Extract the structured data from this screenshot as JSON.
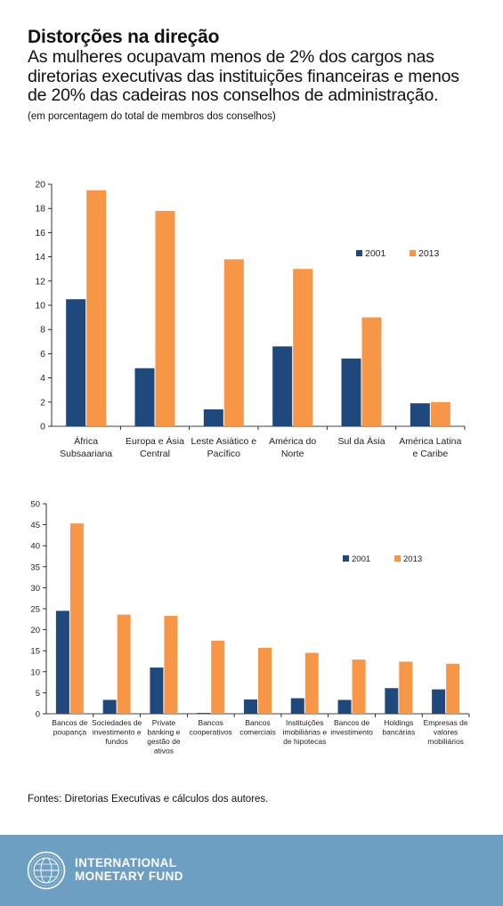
{
  "header": {
    "title": "Distorções na direção",
    "subtitle": "As mulheres ocupavam menos de 2% dos cargos nas diretorias executivas das instituições financeiras e menos de 20% das cadeiras nos conselhos de administração.",
    "note": "(em porcentagem do total de membros dos conselhos)"
  },
  "colors": {
    "s2001": "#1f497d",
    "s2013": "#f79646",
    "axis": "#000000"
  },
  "chart_data": [
    {
      "type": "bar",
      "categories": [
        [
          "África",
          "Subsaariana"
        ],
        [
          "Europa e Ásia",
          "Central"
        ],
        [
          "Leste Asiático e",
          "Pacífico"
        ],
        [
          "América do",
          "Norte"
        ],
        [
          "Sul da Ásia"
        ],
        [
          "América Latina",
          "e Caribe"
        ]
      ],
      "series": [
        {
          "name": "2001",
          "values": [
            10.5,
            4.8,
            1.4,
            6.6,
            5.6,
            1.9
          ]
        },
        {
          "name": "2013",
          "values": [
            19.5,
            17.8,
            13.8,
            13.0,
            9.0,
            2.0
          ]
        }
      ],
      "ylim": [
        0,
        20
      ],
      "yticks": [
        "0",
        "2",
        "4",
        "6",
        "8",
        "10",
        "12",
        "14",
        "16",
        "18",
        "20"
      ],
      "legend": "right"
    },
    {
      "type": "bar",
      "categories": [
        [
          "Bancos de",
          "poupança"
        ],
        [
          "Sociedades de",
          "investimento e",
          "fundos"
        ],
        [
          "Private",
          "banking e",
          "gestão de",
          "ativos"
        ],
        [
          "Bancos",
          "cooperativos"
        ],
        [
          "Bancos",
          "comerciais"
        ],
        [
          "Instituições",
          "imobiliárias e",
          "de hipotecas"
        ],
        [
          "Bancos de",
          "investimento"
        ],
        [
          "Holdings",
          "bancárias"
        ],
        [
          "Empresas de",
          "valores",
          "mobiliários"
        ]
      ],
      "series": [
        {
          "name": "2001",
          "values": [
            24.5,
            3.3,
            11.0,
            0.2,
            3.4,
            3.7,
            3.3,
            6.1,
            5.8
          ]
        },
        {
          "name": "2013",
          "values": [
            45.3,
            23.6,
            23.3,
            17.4,
            15.7,
            14.5,
            12.9,
            12.4,
            11.9
          ]
        }
      ],
      "ylim": [
        0,
        50
      ],
      "yticks": [
        "0",
        "5",
        "10",
        "15",
        "20",
        "25",
        "30",
        "35",
        "40",
        "45",
        "50"
      ],
      "legend": "right"
    }
  ],
  "sources": "Fontes: Diretorias Executivas e cálculos dos autores.",
  "footer": {
    "line1": "INTERNATIONAL",
    "line2": "MONETARY FUND",
    "logo_icon": "imf-seal-icon"
  }
}
